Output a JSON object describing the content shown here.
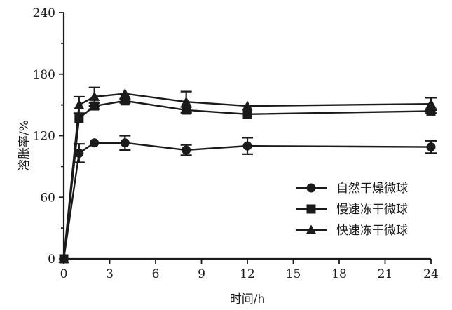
{
  "chart_data": {
    "type": "line",
    "title": "",
    "xlabel": "时间/h",
    "ylabel": "溶胀率/%",
    "xlim": [
      0,
      24
    ],
    "ylim": [
      0,
      240
    ],
    "x_ticks": [
      0,
      3,
      6,
      9,
      12,
      15,
      18,
      21,
      24
    ],
    "y_ticks": [
      0,
      60,
      120,
      180,
      240
    ],
    "grid": false,
    "legend_position": "lower-right",
    "series": [
      {
        "name": "自然干燥微球",
        "marker": "circle",
        "x": [
          0,
          1,
          2,
          4,
          8,
          12,
          24
        ],
        "y": [
          0,
          103,
          113,
          113,
          106,
          110,
          109
        ],
        "error": [
          0,
          9,
          0,
          7,
          5,
          8,
          6
        ]
      },
      {
        "name": "慢速冻干微球",
        "marker": "square",
        "x": [
          0,
          1,
          2,
          4,
          8,
          12,
          24
        ],
        "y": [
          0,
          137,
          149,
          154,
          145,
          141,
          144
        ],
        "error": [
          0,
          0,
          3,
          2,
          3,
          0,
          2
        ]
      },
      {
        "name": "快速冻干微球",
        "marker": "triangle",
        "x": [
          0,
          1,
          2,
          4,
          8,
          12,
          24
        ],
        "y": [
          0,
          150,
          158,
          161,
          153,
          149,
          151
        ],
        "error": [
          0,
          8,
          9,
          0,
          10,
          0,
          6
        ]
      }
    ],
    "colors": {
      "line": "#1a1a1a"
    }
  }
}
